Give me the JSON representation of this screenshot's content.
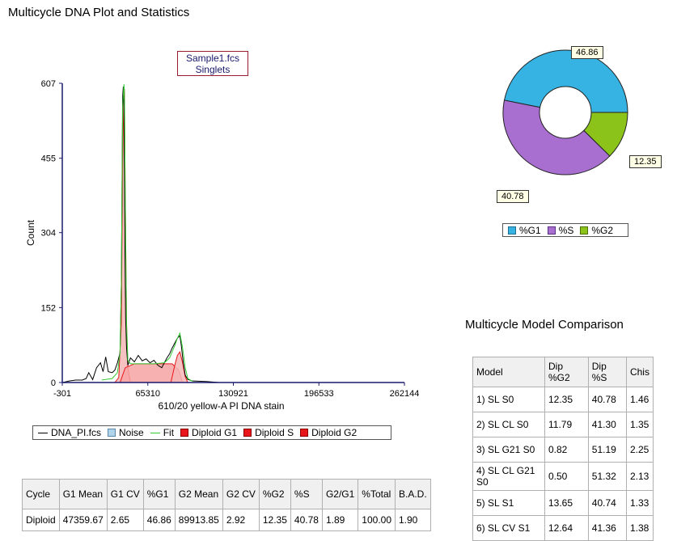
{
  "title": "Multicycle DNA Plot and Statistics",
  "sample": {
    "line1": "Sample1.fcs",
    "line2": "Singlets"
  },
  "chart_data": [
    {
      "type": "line",
      "xlabel": "610/20 yellow-A PI DNA stain",
      "ylabel": "Count",
      "xlim": [
        -301,
        262144
      ],
      "ylim": [
        0,
        607
      ],
      "x_ticks": [
        "-301",
        "65310",
        "130921",
        "196533",
        "262144"
      ],
      "y_ticks": [
        "0",
        "152",
        "304",
        "455",
        "607"
      ],
      "legend": [
        "DNA_PI.fcs",
        "Noise",
        "Fit",
        "Diploid G1",
        "Diploid S",
        "Diploid G2"
      ],
      "series": [
        {
          "name": "DNA_PI.fcs",
          "x": [
            0,
            5000,
            10000,
            15000,
            18000,
            20000,
            23000,
            26000,
            29000,
            31000,
            33000,
            35000,
            38000,
            40000,
            42000,
            44000,
            45000,
            46000,
            46500,
            47000,
            47360,
            47800,
            48300,
            49000,
            50000,
            52000,
            55000,
            58000,
            61000,
            64000,
            67000,
            70000,
            73000,
            76000,
            78000,
            80000,
            82000,
            84000,
            86000,
            88000,
            89914,
            91000,
            92500,
            94000,
            96000,
            100000,
            110000,
            120000
          ],
          "y": [
            0,
            3,
            5,
            5,
            8,
            20,
            6,
            30,
            40,
            22,
            52,
            22,
            20,
            25,
            40,
            60,
            200,
            580,
            600,
            560,
            430,
            260,
            130,
            70,
            35,
            50,
            42,
            55,
            44,
            48,
            40,
            45,
            35,
            30,
            40,
            50,
            58,
            70,
            80,
            90,
            95,
            75,
            40,
            15,
            6,
            3,
            2,
            0
          ]
        },
        {
          "name": "Fit",
          "x": [
            30000,
            38000,
            42000,
            44000,
            45000,
            46000,
            47000,
            47360,
            48000,
            49000,
            50000,
            52000,
            60000,
            70000,
            78000,
            82000,
            86000,
            88000,
            89914,
            92000,
            94000,
            96000,
            100000
          ],
          "y": [
            5,
            8,
            20,
            60,
            200,
            560,
            605,
            590,
            380,
            120,
            45,
            38,
            38,
            38,
            40,
            50,
            75,
            90,
            100,
            70,
            30,
            8,
            2
          ]
        }
      ],
      "fill_series": [
        {
          "name": "Diploid G1",
          "x": [
            40000,
            43000,
            45000,
            46000,
            47000,
            47360,
            48000,
            49000,
            50000,
            52000
          ],
          "y": [
            0,
            10,
            120,
            450,
            590,
            595,
            380,
            120,
            30,
            0
          ]
        },
        {
          "name": "Diploid S",
          "x": [
            44000,
            48000,
            55000,
            65000,
            75000,
            84000,
            89000,
            92000
          ],
          "y": [
            0,
            30,
            38,
            38,
            38,
            38,
            25,
            0
          ]
        },
        {
          "name": "Diploid G2",
          "x": [
            83000,
            86000,
            88000,
            89914,
            92000,
            94000,
            96000
          ],
          "y": [
            0,
            35,
            55,
            62,
            40,
            12,
            0
          ]
        }
      ]
    },
    {
      "type": "pie",
      "donut": true,
      "categories": [
        "%G1",
        "%S",
        "%G2"
      ],
      "values": [
        46.86,
        40.78,
        12.35
      ],
      "colors": [
        "#36b3e3",
        "#a86fd0",
        "#8bc31a"
      ],
      "labels": [
        "46.86",
        "40.78",
        "12.35"
      ]
    }
  ],
  "legend_colors": {
    "noise": "#b0d4ea",
    "fit": "#33cc33",
    "g1": "#e8161b",
    "s": "#e8161b",
    "g2": "#e8161b"
  },
  "model_comparison": {
    "title": "Multicycle Model Comparison",
    "headers": [
      "Model",
      "Dip %G2",
      "Dip %S",
      "Chis"
    ],
    "rows": [
      [
        "1) SL S0",
        "12.35",
        "40.78",
        "1.46"
      ],
      [
        "2) SL CL S0",
        "11.79",
        "41.30",
        "1.35"
      ],
      [
        "3) SL G21 S0",
        "0.82",
        "51.19",
        "2.25"
      ],
      [
        "4) SL CL G21 S0",
        "0.50",
        "51.32",
        "2.13"
      ],
      [
        "5) SL S1",
        "13.65",
        "40.74",
        "1.33"
      ],
      [
        "6) SL CV S1",
        "12.64",
        "41.36",
        "1.38"
      ]
    ]
  },
  "stats": {
    "headers": [
      "Cycle",
      "G1 Mean",
      "G1 CV",
      "%G1",
      "G2 Mean",
      "G2 CV",
      "%G2",
      "%S",
      "G2/G1",
      "%Total",
      "B.A.D."
    ],
    "row": [
      "Diploid",
      "47359.67",
      "2.65",
      "46.86",
      "89913.85",
      "2.92",
      "12.35",
      "40.78",
      "1.89",
      "100.00",
      "1.90"
    ]
  }
}
